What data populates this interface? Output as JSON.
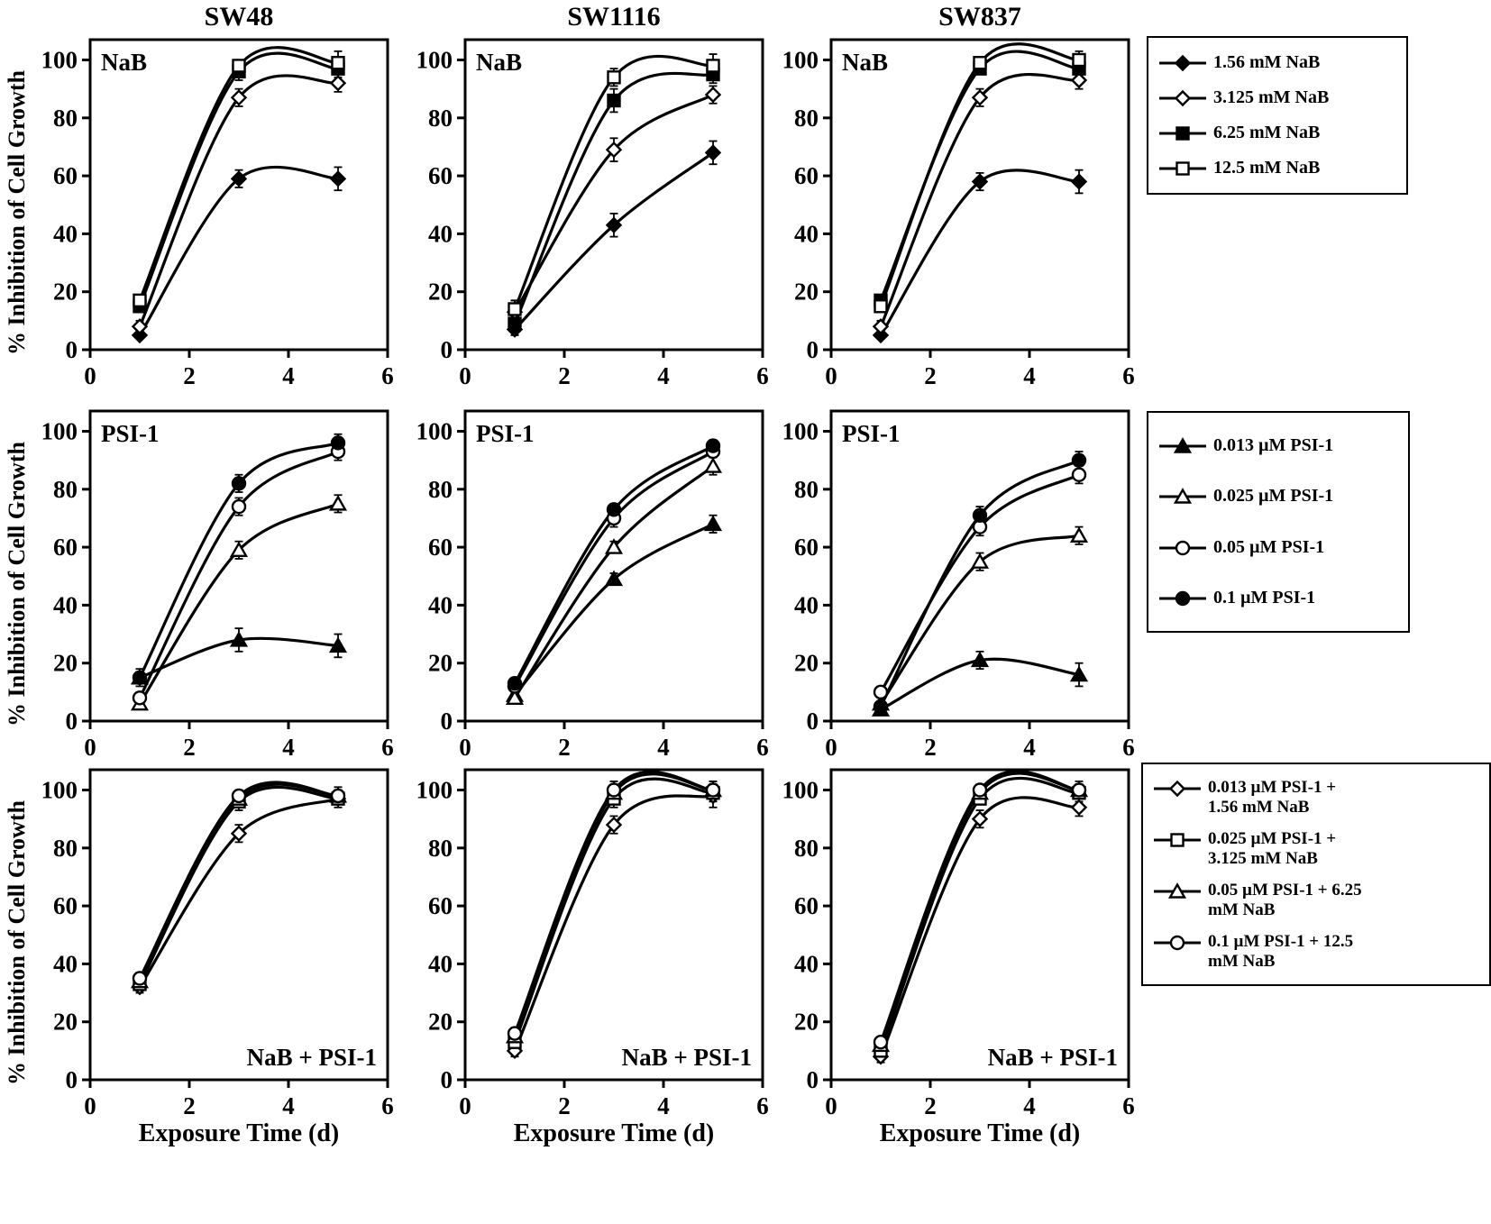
{
  "figure": {
    "column_titles": [
      "SW48",
      "SW1116",
      "SW837"
    ],
    "ylabel": "% Inhibition of Cell Growth",
    "xlabel": "Exposure Time (d)"
  },
  "legends": [
    {
      "name": "NaB legend",
      "entries": [
        {
          "marker": "diamond-filled",
          "label": "1.56 mM NaB"
        },
        {
          "marker": "diamond-open",
          "label": "3.125 mM NaB"
        },
        {
          "marker": "square-filled",
          "label": "6.25 mM NaB"
        },
        {
          "marker": "square-open",
          "label": "12.5 mM NaB"
        }
      ]
    },
    {
      "name": "PSI-1 legend",
      "entries": [
        {
          "marker": "triangle-filled",
          "label": "0.013 µM PSI-1"
        },
        {
          "marker": "triangle-open",
          "label": "0.025 µM PSI-1"
        },
        {
          "marker": "circle-open",
          "label": "0.05 µM PSI-1"
        },
        {
          "marker": "circle-filled",
          "label": "0.1 µM PSI-1"
        }
      ]
    },
    {
      "name": "NaB + PSI-1 legend",
      "entries": [
        {
          "marker": "diamond-open",
          "label": "0.013 µM PSI-1 +\n1.56 mM NaB"
        },
        {
          "marker": "square-open",
          "label": "0.025 µM PSI-1 +\n3.125 mM NaB"
        },
        {
          "marker": "triangle-open",
          "label": "0.05 µM PSI-1 + 6.25\nmM NaB"
        },
        {
          "marker": "circle-open",
          "label": "0.1 µM PSI-1 + 12.5\nmM NaB"
        }
      ]
    }
  ],
  "chart_data": [
    {
      "type": "line",
      "cell_line": "SW48",
      "treatment": "NaB",
      "panel_label": "NaB",
      "panel_label_pos": "top-left",
      "x": [
        1,
        3,
        5
      ],
      "xlim": [
        0,
        6
      ],
      "ylim": [
        0,
        100
      ],
      "xticks": [
        0,
        2,
        4,
        6
      ],
      "yticks": [
        0,
        20,
        40,
        60,
        80,
        100
      ],
      "series": [
        {
          "name": "1.56 mM NaB",
          "marker": "diamond-filled",
          "values": [
            5,
            59,
            59
          ],
          "err": [
            1,
            3,
            4
          ]
        },
        {
          "name": "3.125 mM NaB",
          "marker": "diamond-open",
          "values": [
            8,
            87,
            92
          ],
          "err": [
            2,
            3,
            3
          ]
        },
        {
          "name": "6.25 mM NaB",
          "marker": "square-filled",
          "values": [
            15,
            96,
            97
          ],
          "err": [
            2,
            3,
            3
          ]
        },
        {
          "name": "12.5 mM NaB",
          "marker": "square-open",
          "values": [
            17,
            98,
            99
          ],
          "err": [
            2,
            2,
            4
          ]
        }
      ]
    },
    {
      "type": "line",
      "cell_line": "SW1116",
      "treatment": "NaB",
      "panel_label": "NaB",
      "panel_label_pos": "top-left",
      "x": [
        1,
        3,
        5
      ],
      "xlim": [
        0,
        6
      ],
      "ylim": [
        0,
        100
      ],
      "xticks": [
        0,
        2,
        4,
        6
      ],
      "yticks": [
        0,
        20,
        40,
        60,
        80,
        100
      ],
      "series": [
        {
          "name": "1.56 mM NaB",
          "marker": "diamond-filled",
          "values": [
            7,
            43,
            68
          ],
          "err": [
            2,
            4,
            4
          ]
        },
        {
          "name": "3.125 mM NaB",
          "marker": "diamond-open",
          "values": [
            13,
            69,
            88
          ],
          "err": [
            4,
            4,
            3
          ]
        },
        {
          "name": "6.25 mM NaB",
          "marker": "square-filled",
          "values": [
            9,
            86,
            95
          ],
          "err": [
            2,
            4,
            3
          ]
        },
        {
          "name": "12.5 mM NaB",
          "marker": "square-open",
          "values": [
            14,
            94,
            98
          ],
          "err": [
            3,
            3,
            4
          ]
        }
      ]
    },
    {
      "type": "line",
      "cell_line": "SW837",
      "treatment": "NaB",
      "panel_label": "NaB",
      "panel_label_pos": "top-left",
      "x": [
        1,
        3,
        5
      ],
      "xlim": [
        0,
        6
      ],
      "ylim": [
        0,
        100
      ],
      "xticks": [
        0,
        2,
        4,
        6
      ],
      "yticks": [
        0,
        20,
        40,
        60,
        80,
        100
      ],
      "series": [
        {
          "name": "1.56 mM NaB",
          "marker": "diamond-filled",
          "values": [
            5,
            58,
            58
          ],
          "err": [
            1,
            3,
            4
          ]
        },
        {
          "name": "3.125 mM NaB",
          "marker": "diamond-open",
          "values": [
            8,
            87,
            93
          ],
          "err": [
            2,
            3,
            3
          ]
        },
        {
          "name": "6.25 mM NaB",
          "marker": "square-filled",
          "values": [
            17,
            97,
            97
          ],
          "err": [
            2,
            2,
            3
          ]
        },
        {
          "name": "12.5 mM NaB",
          "marker": "square-open",
          "values": [
            15,
            99,
            100
          ],
          "err": [
            2,
            2,
            3
          ]
        }
      ]
    },
    {
      "type": "line",
      "cell_line": "SW48",
      "treatment": "PSI-1",
      "panel_label": "PSI-1",
      "panel_label_pos": "top-left",
      "x": [
        1,
        3,
        5
      ],
      "xlim": [
        0,
        6
      ],
      "ylim": [
        0,
        100
      ],
      "xticks": [
        0,
        2,
        4,
        6
      ],
      "yticks": [
        0,
        20,
        40,
        60,
        80,
        100
      ],
      "series": [
        {
          "name": "0.013 µM PSI-1",
          "marker": "triangle-filled",
          "values": [
            15,
            28,
            26
          ],
          "err": [
            3,
            4,
            4
          ]
        },
        {
          "name": "0.025 µM PSI-1",
          "marker": "triangle-open",
          "values": [
            6,
            59,
            75
          ],
          "err": [
            1,
            3,
            3
          ]
        },
        {
          "name": "0.05 µM PSI-1",
          "marker": "circle-open",
          "values": [
            8,
            74,
            93
          ],
          "err": [
            2,
            3,
            3
          ]
        },
        {
          "name": "0.1 µM PSI-1",
          "marker": "circle-filled",
          "values": [
            15,
            82,
            96
          ],
          "err": [
            2,
            3,
            3
          ]
        }
      ]
    },
    {
      "type": "line",
      "cell_line": "SW1116",
      "treatment": "PSI-1",
      "panel_label": "PSI-1",
      "panel_label_pos": "top-left",
      "x": [
        1,
        3,
        5
      ],
      "xlim": [
        0,
        6
      ],
      "ylim": [
        0,
        100
      ],
      "xticks": [
        0,
        2,
        4,
        6
      ],
      "yticks": [
        0,
        20,
        40,
        60,
        80,
        100
      ],
      "series": [
        {
          "name": "0.013 µM PSI-1",
          "marker": "triangle-filled",
          "values": [
            9,
            49,
            68
          ],
          "err": [
            2,
            2,
            3
          ]
        },
        {
          "name": "0.025 µM PSI-1",
          "marker": "triangle-open",
          "values": [
            8,
            60,
            88
          ],
          "err": [
            2,
            2,
            3
          ]
        },
        {
          "name": "0.05 µM PSI-1",
          "marker": "circle-open",
          "values": [
            12,
            70,
            93
          ],
          "err": [
            2,
            3,
            2
          ]
        },
        {
          "name": "0.1 µM PSI-1",
          "marker": "circle-filled",
          "values": [
            13,
            73,
            95
          ],
          "err": [
            2,
            2,
            2
          ]
        }
      ]
    },
    {
      "type": "line",
      "cell_line": "SW837",
      "treatment": "PSI-1",
      "panel_label": "PSI-1",
      "panel_label_pos": "top-left",
      "x": [
        1,
        3,
        5
      ],
      "xlim": [
        0,
        6
      ],
      "ylim": [
        0,
        100
      ],
      "xticks": [
        0,
        2,
        4,
        6
      ],
      "yticks": [
        0,
        20,
        40,
        60,
        80,
        100
      ],
      "series": [
        {
          "name": "0.013 µM PSI-1",
          "marker": "triangle-filled",
          "values": [
            4,
            21,
            16
          ],
          "err": [
            1,
            3,
            4
          ]
        },
        {
          "name": "0.025 µM PSI-1",
          "marker": "triangle-open",
          "values": [
            6,
            55,
            64
          ],
          "err": [
            1,
            3,
            3
          ]
        },
        {
          "name": "0.05 µM PSI-1",
          "marker": "circle-open",
          "values": [
            10,
            67,
            85
          ],
          "err": [
            2,
            3,
            3
          ]
        },
        {
          "name": "0.1 µM PSI-1",
          "marker": "circle-filled",
          "values": [
            5,
            71,
            90
          ],
          "err": [
            1,
            3,
            3
          ]
        }
      ]
    },
    {
      "type": "line",
      "cell_line": "SW48",
      "treatment": "NaB + PSI-1",
      "panel_label": "NaB + PSI-1",
      "panel_label_pos": "bottom-right",
      "x": [
        1,
        3,
        5
      ],
      "xlim": [
        0,
        6
      ],
      "ylim": [
        0,
        100
      ],
      "xticks": [
        0,
        2,
        4,
        6
      ],
      "yticks": [
        0,
        20,
        40,
        60,
        80,
        100
      ],
      "series": [
        {
          "name": "0.013 µM PSI-1 + 1.56 mM NaB",
          "marker": "diamond-open",
          "values": [
            32,
            85,
            97
          ],
          "err": [
            2,
            3,
            3
          ]
        },
        {
          "name": "0.025 µM PSI-1 + 3.125 mM NaB",
          "marker": "square-open",
          "values": [
            33,
            96,
            97
          ],
          "err": [
            2,
            3,
            2
          ]
        },
        {
          "name": "0.05 µM PSI-1 + 6.25 mM NaB",
          "marker": "triangle-open",
          "values": [
            34,
            97,
            98
          ],
          "err": [
            2,
            2,
            2
          ]
        },
        {
          "name": "0.1 µM PSI-1 + 12.5 mM NaB",
          "marker": "circle-open",
          "values": [
            35,
            98,
            98
          ],
          "err": [
            2,
            2,
            3
          ]
        }
      ]
    },
    {
      "type": "line",
      "cell_line": "SW1116",
      "treatment": "NaB + PSI-1",
      "panel_label": "NaB + PSI-1",
      "panel_label_pos": "bottom-right",
      "x": [
        1,
        3,
        5
      ],
      "xlim": [
        0,
        6
      ],
      "ylim": [
        0,
        100
      ],
      "xticks": [
        0,
        2,
        4,
        6
      ],
      "yticks": [
        0,
        20,
        40,
        60,
        80,
        100
      ],
      "series": [
        {
          "name": "0.013 µM PSI-1 + 1.56 mM NaB",
          "marker": "diamond-open",
          "values": [
            10,
            88,
            98
          ],
          "err": [
            2,
            3,
            4
          ]
        },
        {
          "name": "0.025 µM PSI-1 + 3.125 mM NaB",
          "marker": "square-open",
          "values": [
            13,
            97,
            99
          ],
          "err": [
            2,
            3,
            3
          ]
        },
        {
          "name": "0.05 µM PSI-1 + 6.25 mM NaB",
          "marker": "triangle-open",
          "values": [
            15,
            99,
            100
          ],
          "err": [
            2,
            2,
            3
          ]
        },
        {
          "name": "0.1 µM PSI-1 + 12.5 mM NaB",
          "marker": "circle-open",
          "values": [
            16,
            100,
            100
          ],
          "err": [
            2,
            3,
            3
          ]
        }
      ]
    },
    {
      "type": "line",
      "cell_line": "SW837",
      "treatment": "NaB + PSI-1",
      "panel_label": "NaB + PSI-1",
      "panel_label_pos": "bottom-right",
      "x": [
        1,
        3,
        5
      ],
      "xlim": [
        0,
        6
      ],
      "ylim": [
        0,
        100
      ],
      "xticks": [
        0,
        2,
        4,
        6
      ],
      "yticks": [
        0,
        20,
        40,
        60,
        80,
        100
      ],
      "series": [
        {
          "name": "0.013 µM PSI-1 + 1.56 mM NaB",
          "marker": "diamond-open",
          "values": [
            8,
            90,
            94
          ],
          "err": [
            2,
            3,
            3
          ]
        },
        {
          "name": "0.025 µM PSI-1 + 3.125 mM NaB",
          "marker": "square-open",
          "values": [
            10,
            97,
            99
          ],
          "err": [
            2,
            2,
            3
          ]
        },
        {
          "name": "0.05 µM PSI-1 + 6.25 mM NaB",
          "marker": "triangle-open",
          "values": [
            12,
            99,
            100
          ],
          "err": [
            2,
            2,
            2
          ]
        },
        {
          "name": "0.1 µM PSI-1 + 12.5 mM NaB",
          "marker": "circle-open",
          "values": [
            13,
            100,
            100
          ],
          "err": [
            1,
            2,
            3
          ]
        }
      ]
    }
  ]
}
